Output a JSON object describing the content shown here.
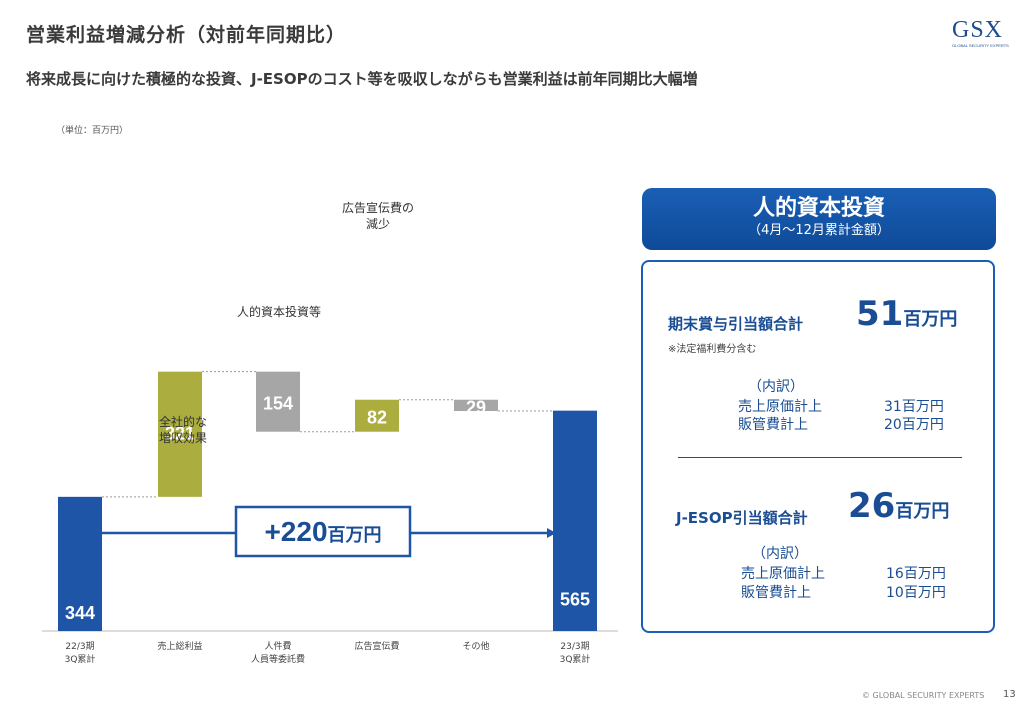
{
  "header": {
    "title": "営業利益増減分析（対前年同期比）",
    "subtitle": "将来成長に向けた積極的な投資、J-ESOPのコスト等を吸収しながらも営業利益は前年同期比大幅増",
    "logo_text": "GSX",
    "logo_subtext": "GLOBAL SECURITY EXPERTS"
  },
  "unit_note": "（単位：百万円）",
  "colors": {
    "blue": "#1f55a6",
    "olive": "#acad3f",
    "gray": "#a6a6a6",
    "accent": "#1a4d94"
  },
  "chart_data": {
    "type": "waterfall",
    "unit": "百万円",
    "ylim": [
      0,
      600
    ],
    "categories": [
      "22/3期\n3Q累計",
      "売上総利益",
      "人件費\n人員等委託費",
      "広告宣伝費",
      "その他",
      "23/3期\n3Q累計"
    ],
    "steps": [
      {
        "category": "22/3期\n3Q累計",
        "kind": "total",
        "value": 344,
        "label": "344"
      },
      {
        "category": "売上総利益",
        "kind": "increase",
        "value": 321,
        "label": "321",
        "annotation": "全社的な\n増収効果"
      },
      {
        "category": "人件費\n人員等委託費",
        "kind": "decrease",
        "value": 154,
        "label": "154",
        "annotation": "人的資本投資等"
      },
      {
        "category": "広告宣伝費",
        "kind": "increase",
        "value": 82,
        "label": "82",
        "annotation": "広告宣伝費の\n減少"
      },
      {
        "category": "その他",
        "kind": "decrease",
        "value": 29,
        "label": "29"
      },
      {
        "category": "23/3期\n3Q累計",
        "kind": "total",
        "value": 565,
        "label": "565"
      }
    ],
    "change_callout": {
      "value": "+220",
      "unit": "百万円"
    }
  },
  "panel": {
    "title": "人的資本投資",
    "subtitle": "（4月～12月累計金額）",
    "sections": [
      {
        "label": "期末賞与引当額合計",
        "value": "51",
        "unit": "百万円",
        "note": "※法定福利費分含む",
        "breakdown_title": "（内訳）",
        "breakdown": [
          {
            "name": "売上原価計上",
            "amount": "31百万円"
          },
          {
            "name": "販管費計上",
            "amount": "20百万円"
          }
        ]
      },
      {
        "label": "J-ESOP引当額合計",
        "value": "26",
        "unit": "百万円",
        "breakdown_title": "（内訳）",
        "breakdown": [
          {
            "name": "売上原価計上",
            "amount": "16百万円"
          },
          {
            "name": "販管費計上",
            "amount": "10百万円"
          }
        ]
      }
    ]
  },
  "footer": {
    "copyright": "© GLOBAL SECURITY EXPERTS",
    "page_number": "13"
  }
}
